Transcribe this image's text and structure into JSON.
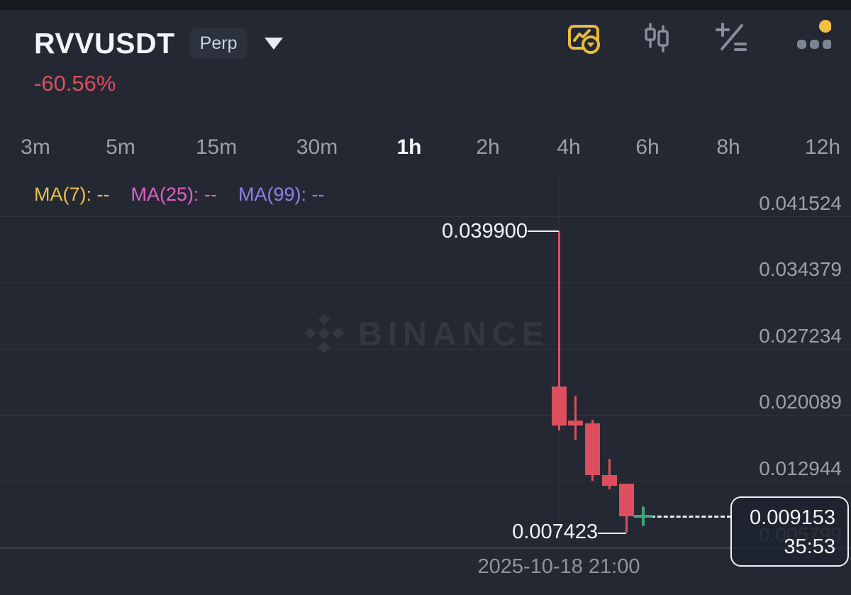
{
  "header": {
    "symbol": "RVVUSDT",
    "market_badge": "Perp",
    "change_percent": "-60.56%",
    "change_color": "#d8505e",
    "accent_yellow": "#e9ba3d",
    "notification_dot_color": "#f0c03f",
    "icons": [
      "chart-style-icon",
      "candlestick-settings-icon",
      "indicator-icon",
      "more-icon"
    ]
  },
  "tabs": {
    "active": "1h",
    "items": [
      {
        "label": "3m"
      },
      {
        "label": "5m"
      },
      {
        "label": "15m"
      },
      {
        "label": "30m"
      },
      {
        "label": "1h",
        "active": true
      },
      {
        "label": "2h"
      },
      {
        "label": "4h"
      },
      {
        "label": "6h"
      },
      {
        "label": "8h"
      },
      {
        "label": "12h"
      }
    ]
  },
  "ma_indicators": [
    {
      "label": "MA(7): --",
      "color": "#e9c04a"
    },
    {
      "label": "MA(25): --",
      "color": "#e161c5"
    },
    {
      "label": "MA(99): --",
      "color": "#8d80e8"
    }
  ],
  "watermark": {
    "text": "BINANCE"
  },
  "time_axis": {
    "label": "2025-10-18 21:00"
  },
  "chart_data": {
    "type": "candlestick",
    "symbol": "RVVUSDT",
    "interval": "1h",
    "date": "2025-10-18",
    "ylim": [
      0.005799,
      0.045981
    ],
    "grid": true,
    "y_axis": {
      "labels": [
        {
          "text": "0.041524",
          "price": 0.041524
        },
        {
          "text": "0.034379",
          "price": 0.034379
        },
        {
          "text": "0.027234",
          "price": 0.027234
        },
        {
          "text": "0.020089",
          "price": 0.020089
        },
        {
          "text": "0.012944",
          "price": 0.012944
        },
        {
          "text": "0.005799",
          "price": 0.005799,
          "faint": true,
          "axis_line": true
        }
      ]
    },
    "x_axis": {
      "label": "2025-10-18 21:00",
      "at_candle_index": 0
    },
    "candles": [
      {
        "open": 0.02316,
        "high": 0.0399,
        "low": 0.01842,
        "close": 0.01896
      },
      {
        "open": 0.01949,
        "high": 0.02217,
        "low": 0.01743,
        "close": 0.01896
      },
      {
        "open": 0.01919,
        "high": 0.01957,
        "low": 0.01299,
        "close": 0.0136
      },
      {
        "open": 0.0136,
        "high": 0.01536,
        "low": 0.01207,
        "close": 0.01245
      },
      {
        "open": 0.01268,
        "high": 0.01268,
        "low": 0.007423,
        "close": 0.009153
      }
    ],
    "annotations": {
      "high": {
        "text": "0.039900",
        "price": 0.0399
      },
      "low": {
        "text": "0.007423",
        "price": 0.007423
      },
      "current": {
        "text": "0.009153",
        "price": 0.009153,
        "countdown": "35:53"
      }
    },
    "colors": {
      "down": "#dd4f5e",
      "marker_green": "#43a477"
    }
  }
}
